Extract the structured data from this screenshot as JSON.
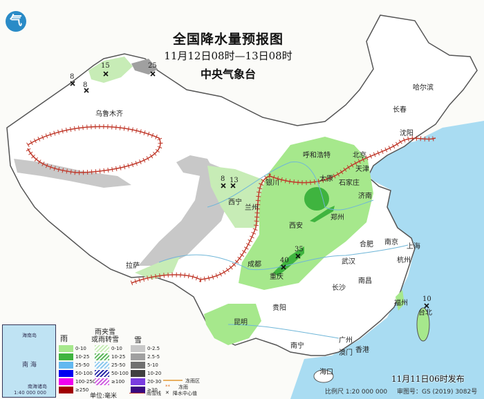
{
  "title": "全国降水量预报图",
  "period": "11月12日08时—13日08时",
  "agency": "中央气象台",
  "logo_text": "气",
  "issued": "11月11日06时发布",
  "scale": "比例尺 1:20 000 000",
  "approval": "审图号：GS (2019) 3082号",
  "cities": [
    "哈尔滨",
    "长春",
    "沈阳",
    "乌鲁木齐",
    "呼和浩特",
    "北京",
    "天津",
    "银川",
    "太原",
    "石家庄",
    "济南",
    "西宁",
    "兰州",
    "西安",
    "郑州",
    "拉萨",
    "成都",
    "重庆",
    "合肥",
    "南京",
    "上海",
    "武汉",
    "杭州",
    "长沙",
    "南昌",
    "贵阳",
    "福州",
    "台北",
    "昆明",
    "南宁",
    "广州",
    "香港",
    "澳门",
    "海口"
  ],
  "precip_centers": [
    "8",
    "8",
    "15",
    "25",
    "8",
    "13",
    "35",
    "40",
    "10"
  ],
  "inset": {
    "label1": "南海诸岛",
    "label2": "1:40 000 000",
    "sea": "南 海",
    "island": "海南岛"
  },
  "legend": {
    "rain_title": "雨",
    "mix_title": "雨夹雪\n或雨转雪",
    "mix_title_1": "雨夹雪",
    "mix_title_2": "或雨转雪",
    "snow_title": "雪",
    "rain": [
      {
        "label": "0-10",
        "color": "#a6e88c"
      },
      {
        "label": "10-25",
        "color": "#3fb43f"
      },
      {
        "label": "25-50",
        "color": "#62b8f0"
      },
      {
        "label": "50-100",
        "color": "#0000f0"
      },
      {
        "label": "100-250",
        "color": "#f000f0"
      },
      {
        "label": "≥250",
        "color": "#a00000"
      }
    ],
    "mix": [
      {
        "label": "0-10",
        "color": "#c7ecb6"
      },
      {
        "label": "10-25",
        "color": "#5cb85c"
      },
      {
        "label": "25-50",
        "color": "#8cc9ee"
      },
      {
        "label": "50-100",
        "color": "#2a2aa8"
      },
      {
        "label": "≥100",
        "color": "#d060e0"
      }
    ],
    "snow": [
      {
        "label": "0-2.5",
        "color": "#c8c8c8"
      },
      {
        "label": "2.5-5",
        "color": "#a0a0a0"
      },
      {
        "label": "5-10",
        "color": "#707070"
      },
      {
        "label": "10-20",
        "color": "#404040"
      },
      {
        "label": "20-30",
        "color": "#7a3ce0"
      },
      {
        "label": "≥30",
        "color": "#3a0a80"
      }
    ],
    "unit": "单位:毫米",
    "line_zone": "冻雨区",
    "freezing_rain": "冻雨",
    "rain_snow_line": "雨雪线",
    "center_value": "降水中心值"
  }
}
